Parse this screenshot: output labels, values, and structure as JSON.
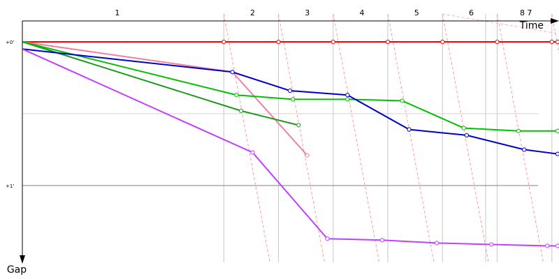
{
  "chart_data": {
    "type": "line",
    "xlabel": "Time",
    "ylabel": "Gap",
    "x_range": [
      0,
      9.3
    ],
    "y_range": [
      -0.03,
      1.6
    ],
    "y_ticks": [
      {
        "label": "+0'",
        "value": 0
      },
      {
        "label": "+1'",
        "value": 1
      }
    ],
    "grid": true,
    "laps": [
      {
        "label": "1",
        "x": 1.65
      },
      {
        "label": "2",
        "x": 4.0
      },
      {
        "label": "3",
        "x": 4.95
      },
      {
        "label": "4",
        "x": 5.9
      },
      {
        "label": "5",
        "x": 6.85
      },
      {
        "label": "6",
        "x": 7.8
      },
      {
        "label": "8 7",
        "x": 8.75
      }
    ],
    "vertical_gridlines_x": [
      3.5,
      4.45,
      5.4,
      6.35,
      7.3,
      8.05,
      8.25,
      9.2
    ],
    "minor_gridlines_y": [
      0.5
    ],
    "major_gridlines_y": [
      1.0
    ],
    "pace_lines": [
      {
        "x": 3.5,
        "dx": 0.8
      },
      {
        "x": 4.45,
        "dx": 0.8
      },
      {
        "x": 5.4,
        "dx": 0.8
      },
      {
        "x": 6.35,
        "dx": 0.8
      },
      {
        "x": 7.3,
        "dx": 0.8
      },
      {
        "x": 8.25,
        "dx": 0.8
      },
      {
        "x": 9.2,
        "dx": 0.8
      }
    ],
    "series": [
      {
        "color": "#ff0000",
        "points": [
          [
            0,
            0
          ],
          [
            3.5,
            0
          ],
          [
            4.45,
            0
          ],
          [
            5.4,
            0
          ],
          [
            6.35,
            0
          ],
          [
            7.3,
            0
          ],
          [
            8.25,
            0
          ],
          [
            9.2,
            0
          ],
          [
            9.3,
            0
          ]
        ]
      },
      {
        "color": "#f07fa0",
        "points": [
          [
            0,
            0
          ],
          [
            3.65,
            0.21
          ],
          [
            4.95,
            0.79
          ]
        ]
      },
      {
        "color": "#1a9a1a",
        "points": [
          [
            0,
            0
          ],
          [
            3.8,
            0.48
          ],
          [
            4.8,
            0.58
          ]
        ]
      },
      {
        "color": "#00c000",
        "points": [
          [
            0,
            0
          ],
          [
            3.72,
            0.37
          ],
          [
            4.7,
            0.4
          ],
          [
            5.65,
            0.4
          ],
          [
            6.6,
            0.41
          ],
          [
            7.67,
            0.6
          ],
          [
            8.62,
            0.62
          ],
          [
            9.3,
            0.62
          ]
        ]
      },
      {
        "color": "#0000cc",
        "points": [
          [
            0,
            0.05
          ],
          [
            3.65,
            0.21
          ],
          [
            4.65,
            0.34
          ],
          [
            5.65,
            0.37
          ],
          [
            6.72,
            0.61
          ],
          [
            7.72,
            0.65
          ],
          [
            8.72,
            0.75
          ],
          [
            9.3,
            0.78
          ]
        ]
      },
      {
        "color": "#c040ff",
        "points": [
          [
            0,
            0.05
          ],
          [
            4.0,
            0.77
          ],
          [
            5.3,
            1.37
          ],
          [
            6.25,
            1.38
          ],
          [
            7.2,
            1.4
          ],
          [
            8.15,
            1.41
          ],
          [
            9.12,
            1.42
          ],
          [
            9.3,
            1.42
          ]
        ]
      }
    ]
  }
}
